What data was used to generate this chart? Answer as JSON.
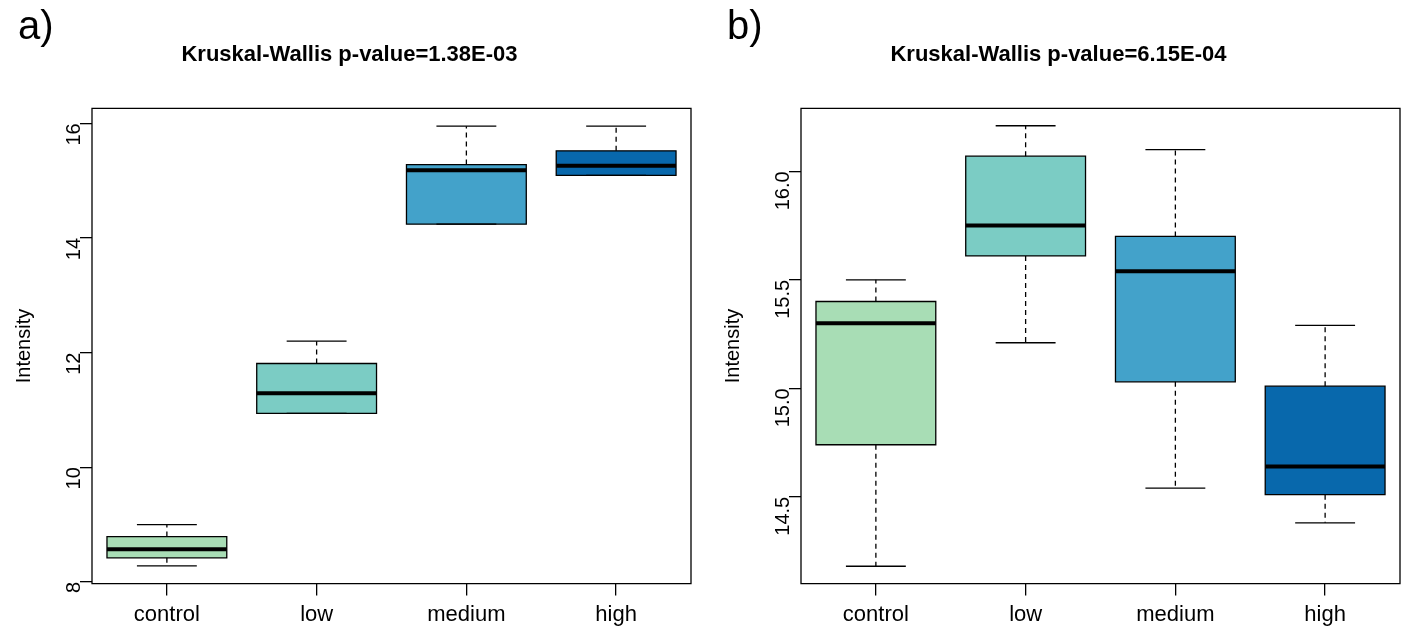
{
  "chart_data": [
    {
      "type": "box",
      "title": "Kruskal-Wallis p-value=1.38E-03",
      "ylabel": "Intensity",
      "annotations": [
        "a)"
      ],
      "categories": [
        "control",
        "low",
        "medium",
        "high"
      ],
      "colors": [
        "#a8ddb5",
        "#7bccc4",
        "#43a2ca",
        "#0868ac"
      ],
      "boxes": [
        {
          "low": 8.28,
          "q1": 8.42,
          "median": 8.57,
          "q3": 8.79,
          "high": 9.0
        },
        {
          "low": 10.94,
          "q1": 10.94,
          "median": 11.29,
          "q3": 11.81,
          "high": 12.2
        },
        {
          "low": 14.24,
          "q1": 14.24,
          "median": 15.18,
          "q3": 15.28,
          "high": 15.95
        },
        {
          "low": 15.09,
          "q1": 15.09,
          "median": 15.26,
          "q3": 15.52,
          "high": 15.95
        }
      ],
      "ylim": [
        7.97,
        16.26
      ],
      "yticks": [
        8,
        10,
        12,
        14,
        16
      ]
    },
    {
      "type": "box",
      "title": "Kruskal-Wallis p-value=6.15E-04",
      "ylabel": "Intensity",
      "annotations": [
        "b)"
      ],
      "categories": [
        "control",
        "low",
        "medium",
        "high"
      ],
      "colors": [
        "#a8ddb5",
        "#7bccc4",
        "#43a2ca",
        "#0868ac"
      ],
      "boxes": [
        {
          "low": 14.18,
          "q1": 14.74,
          "median": 15.3,
          "q3": 15.4,
          "high": 15.5
        },
        {
          "low": 15.21,
          "q1": 15.61,
          "median": 15.75,
          "q3": 16.07,
          "high": 16.21
        },
        {
          "low": 14.54,
          "q1": 15.03,
          "median": 15.54,
          "q3": 15.7,
          "high": 16.1
        },
        {
          "low": 14.38,
          "q1": 14.51,
          "median": 14.64,
          "q3": 15.01,
          "high": 15.29
        }
      ],
      "ylim": [
        14.1,
        16.29
      ],
      "yticks": [
        {
          "value": 14.5,
          "label": "14.5"
        },
        {
          "value": 15,
          "label": "15.0"
        },
        {
          "value": 15.5,
          "label": "15.5"
        },
        {
          "value": 16,
          "label": "16.0"
        }
      ]
    }
  ]
}
